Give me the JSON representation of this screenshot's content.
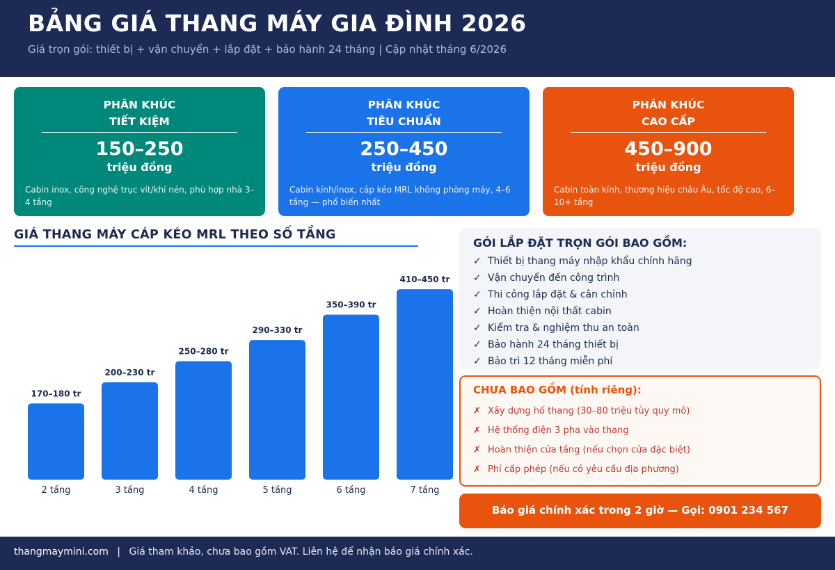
{
  "header": {
    "title": "BẢNG GIÁ THANG MÁY GIA ĐÌNH 2026",
    "subtitle": "Giá trọn gói: thiết bị + vận chuyển + lắp đặt + bảo hành 24 tháng | Cập nhật tháng 6/2026"
  },
  "segments": [
    {
      "line1": "PHÂN KHÚC",
      "line2": "TIẾT KIỆM",
      "range": "150–250",
      "unit": "triệu đồng",
      "desc": "Cabin inox, công nghệ trục vít/khí nén, phù hợp nhà 3–4 tầng",
      "color": "#00897b"
    },
    {
      "line1": "PHÂN KHÚC",
      "line2": "TIÊU CHUẨN",
      "range": "250–450",
      "unit": "triệu đồng",
      "desc": "Cabin kính/inox, cáp kéo MRL không phòng máy, 4–6 tầng — phổ biến nhất",
      "color": "#1a73e8"
    },
    {
      "line1": "PHÂN KHÚC",
      "line2": "CAO CẤP",
      "range": "450–900",
      "unit": "triệu đồng",
      "desc": "Cabin toàn kính, thương hiệu châu Âu, tốc độ cao, 6–10+ tầng",
      "color": "#e8540e"
    }
  ],
  "chart_data": {
    "type": "bar",
    "title": "GIÁ THANG MÁY CÁP KÉO MRL THEO SỐ TẦNG",
    "categories": [
      "2 tầng",
      "3 tầng",
      "4 tầng",
      "5 tầng",
      "6 tầng",
      "7 tầng"
    ],
    "values": [
      180,
      230,
      280,
      330,
      390,
      450
    ],
    "ranges": [
      [
        170,
        180
      ],
      [
        200,
        230
      ],
      [
        250,
        280
      ],
      [
        290,
        330
      ],
      [
        350,
        390
      ],
      [
        410,
        450
      ]
    ],
    "data_labels": [
      "170–180 tr",
      "200–230 tr",
      "250–280 tr",
      "290–330 tr",
      "350–390 tr",
      "410–450 tr"
    ],
    "xlabel": "",
    "ylabel": "",
    "ylim": [
      0,
      460
    ],
    "grid": false,
    "bar_color": "#1a73e8"
  },
  "included": {
    "title": "GÓI LẮP ĐẶT TRỌN GÓI BAO GỒM:",
    "mark": "✓",
    "items": [
      "Thiết bị thang máy nhập khẩu chính hãng",
      "Vận chuyển đến công trình",
      "Thi công lắp đặt & cân chỉnh",
      "Hoàn thiện nội thất cabin",
      "Kiểm tra & nghiệm thu an toàn",
      "Bảo hành 24 tháng thiết bị",
      "Bảo trì 12 tháng miễn phí"
    ]
  },
  "excluded": {
    "title": "CHƯA BAO GỒM (tính riêng):",
    "mark": "✗",
    "items": [
      "Xây dựng hố thang (30–80 triệu tùy quy mô)",
      "Hệ thống điện 3 pha vào thang",
      "Hoàn thiện cửa tầng (nếu chọn cửa đặc biệt)",
      "Phí cấp phép (nếu có yêu cầu địa phương)"
    ]
  },
  "cta": {
    "label": "Báo giá chính xác trong 2 giờ — Gọi: 0901 234 567"
  },
  "footer": {
    "site": "thangmaymini.com",
    "separator": "|",
    "note": "Giá tham khảo, chưa bao gồm VAT. Liên hệ để nhận báo giá chính xác."
  }
}
